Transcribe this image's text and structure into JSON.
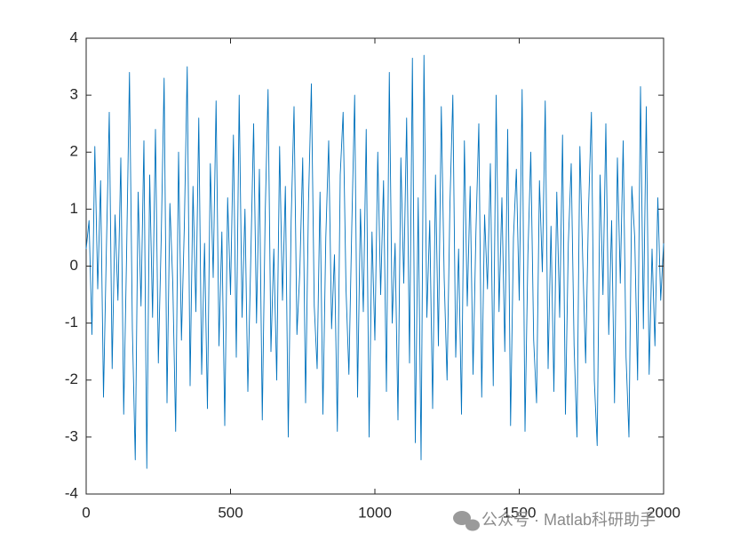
{
  "chart_data": {
    "type": "line",
    "x": [
      0,
      10,
      20,
      30,
      40,
      50,
      60,
      70,
      80,
      90,
      100,
      110,
      120,
      130,
      140,
      150,
      160,
      170,
      180,
      190,
      200,
      210,
      220,
      230,
      240,
      250,
      260,
      270,
      280,
      290,
      300,
      310,
      320,
      330,
      340,
      350,
      360,
      370,
      380,
      390,
      400,
      410,
      420,
      430,
      440,
      450,
      460,
      470,
      480,
      490,
      500,
      510,
      520,
      530,
      540,
      550,
      560,
      570,
      580,
      590,
      600,
      610,
      620,
      630,
      640,
      650,
      660,
      670,
      680,
      690,
      700,
      710,
      720,
      730,
      740,
      750,
      760,
      770,
      780,
      790,
      800,
      810,
      820,
      830,
      840,
      850,
      860,
      870,
      880,
      890,
      900,
      910,
      920,
      930,
      940,
      950,
      960,
      970,
      980,
      990,
      1000,
      1010,
      1020,
      1030,
      1040,
      1050,
      1060,
      1070,
      1080,
      1090,
      1100,
      1110,
      1120,
      1130,
      1140,
      1150,
      1160,
      1170,
      1180,
      1190,
      1200,
      1210,
      1220,
      1230,
      1240,
      1250,
      1260,
      1270,
      1280,
      1290,
      1300,
      1310,
      1320,
      1330,
      1340,
      1350,
      1360,
      1370,
      1380,
      1390,
      1400,
      1410,
      1420,
      1430,
      1440,
      1450,
      1460,
      1470,
      1480,
      1490,
      1500,
      1510,
      1520,
      1530,
      1540,
      1550,
      1560,
      1570,
      1580,
      1590,
      1600,
      1610,
      1620,
      1630,
      1640,
      1650,
      1660,
      1670,
      1680,
      1690,
      1700,
      1710,
      1720,
      1730,
      1740,
      1750,
      1760,
      1770,
      1780,
      1790,
      1800,
      1810,
      1820,
      1830,
      1840,
      1850,
      1860,
      1870,
      1880,
      1890,
      1900,
      1910,
      1920,
      1930,
      1940,
      1950,
      1960,
      1970,
      1980,
      1990,
      2000
    ],
    "series": [
      {
        "color": "#0072bd",
        "values": [
          0.3,
          0.8,
          -1.2,
          2.1,
          -0.4,
          1.5,
          -2.3,
          0.3,
          2.7,
          -1.8,
          0.9,
          -0.6,
          1.9,
          -2.6,
          0.2,
          3.4,
          -1.1,
          -3.4,
          1.3,
          -0.7,
          2.2,
          -3.55,
          1.6,
          -0.9,
          2.4,
          -1.7,
          0.5,
          3.3,
          -2.4,
          1.1,
          -0.3,
          -2.9,
          2.0,
          -1.3,
          0.7,
          3.5,
          -2.1,
          1.4,
          -0.8,
          2.6,
          -1.9,
          0.4,
          -2.5,
          1.8,
          -0.2,
          2.9,
          -1.4,
          0.6,
          -2.8,
          1.2,
          -0.5,
          2.3,
          -1.6,
          3.0,
          -0.9,
          1.0,
          -2.2,
          0.1,
          2.5,
          -1.0,
          1.7,
          -2.7,
          0.9,
          3.1,
          -1.5,
          0.3,
          -2.0,
          2.1,
          -0.6,
          1.4,
          -3.0,
          0.8,
          2.8,
          -1.2,
          -0.1,
          1.9,
          -2.4,
          1.1,
          3.2,
          -0.7,
          -1.8,
          1.3,
          -2.6,
          0.5,
          2.2,
          -1.1,
          0.2,
          -2.9,
          1.6,
          2.7,
          -0.4,
          -1.9,
          0.7,
          3.0,
          -2.3,
          1.0,
          -0.8,
          2.4,
          -3.0,
          0.6,
          -1.3,
          2.0,
          -0.5,
          1.5,
          -2.2,
          3.4,
          -1.0,
          0.4,
          -2.7,
          1.9,
          -0.3,
          2.6,
          -1.7,
          3.65,
          -3.1,
          1.2,
          -3.4,
          3.7,
          -0.9,
          0.8,
          -2.5,
          1.6,
          -1.4,
          2.8,
          -0.2,
          -2.0,
          1.1,
          3.0,
          -1.6,
          0.3,
          -2.6,
          2.2,
          -0.7,
          1.4,
          -1.9,
          0.6,
          2.5,
          -2.3,
          0.9,
          -0.4,
          1.8,
          -2.1,
          3.0,
          -0.8,
          1.2,
          -1.5,
          2.4,
          -2.8,
          0.5,
          1.7,
          -0.6,
          3.1,
          -2.9,
          0.2,
          2.0,
          -1.3,
          -2.4,
          1.5,
          -0.1,
          2.9,
          -1.8,
          0.7,
          -2.2,
          1.3,
          -0.9,
          2.3,
          -2.6,
          0.4,
          1.8,
          -1.4,
          -3.0,
          2.1,
          0.1,
          -1.7,
          1.0,
          2.7,
          -2.0,
          -3.15,
          1.6,
          -0.5,
          2.5,
          -1.2,
          0.8,
          -2.4,
          1.9,
          -0.3,
          2.2,
          -1.6,
          -3.0,
          1.4,
          0.5,
          -2.0,
          3.15,
          -1.1,
          2.8,
          -1.9,
          0.3,
          -1.4,
          1.2,
          -0.6,
          0.4
        ]
      }
    ],
    "xlim": [
      0,
      2000
    ],
    "xticks": [
      0,
      500,
      1000,
      1500,
      2000
    ],
    "ylim": [
      -4,
      4
    ],
    "yticks": [
      -4,
      -3,
      -2,
      -1,
      0,
      1,
      2,
      3,
      4
    ],
    "watermark": "公众号 · Matlab科研助手"
  }
}
